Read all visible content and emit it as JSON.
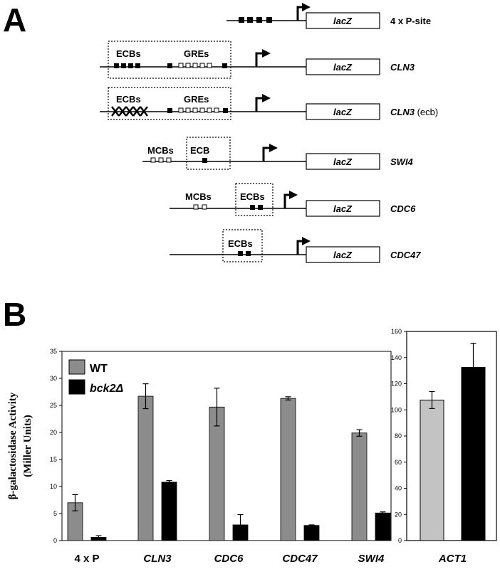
{
  "panel_a": {
    "letter": "A",
    "reporter_label": "lacZ",
    "constructs": [
      {
        "name": "4 x P-site",
        "italic": false,
        "suffix": "",
        "labels": []
      },
      {
        "name": "CLN3",
        "italic": true,
        "suffix": "",
        "labels": [
          "ECBs",
          "GREs"
        ]
      },
      {
        "name": "CLN3",
        "italic": true,
        "suffix": " (ecb)",
        "labels": [
          "ECBs",
          "GREs"
        ]
      },
      {
        "name": "SWI4",
        "italic": true,
        "suffix": "",
        "labels": [
          "MCBs",
          "ECB"
        ]
      },
      {
        "name": "CDC6",
        "italic": true,
        "suffix": "",
        "labels": [
          "MCBs",
          "ECBs"
        ]
      },
      {
        "name": "CDC47",
        "italic": true,
        "suffix": "",
        "labels": [
          "ECBs"
        ]
      }
    ]
  },
  "panel_b": {
    "letter": "B"
  },
  "chart_data": [
    {
      "type": "bar",
      "ylabel_line1": "β-galactosidase Activity",
      "ylabel_line2": "(Miller Units)",
      "ylim": [
        0,
        35
      ],
      "yticks": [
        0,
        5,
        10,
        15,
        20,
        25,
        30,
        35
      ],
      "categories": [
        "4 x P",
        "CLN3",
        "CDC6",
        "CDC47",
        "SWI4"
      ],
      "category_italic": [
        false,
        true,
        true,
        true,
        true
      ],
      "legend_placement": "top-left",
      "series": [
        {
          "name": "WT",
          "color": "#8c8c8c",
          "values": [
            7.0,
            26.7,
            24.7,
            26.3,
            19.9
          ],
          "errors": [
            1.5,
            2.3,
            3.5,
            0.3,
            0.6
          ]
        },
        {
          "name": "bck2Δ",
          "color": "#000000",
          "values": [
            0.6,
            10.8,
            2.9,
            2.8,
            5.1
          ],
          "errors": [
            0.3,
            0.3,
            1.9,
            0.1,
            0.2
          ]
        }
      ]
    },
    {
      "type": "bar",
      "ylim": [
        0,
        160
      ],
      "yticks": [
        0,
        20,
        40,
        60,
        80,
        100,
        120,
        140,
        160
      ],
      "categories": [
        "ACT1"
      ],
      "category_italic": [
        true
      ],
      "series": [
        {
          "color": "#c3c3c3",
          "values": [
            107.5
          ],
          "errors": [
            6.5
          ]
        },
        {
          "color": "#000000",
          "values": [
            132.5
          ],
          "errors": [
            18.5
          ]
        }
      ]
    }
  ]
}
